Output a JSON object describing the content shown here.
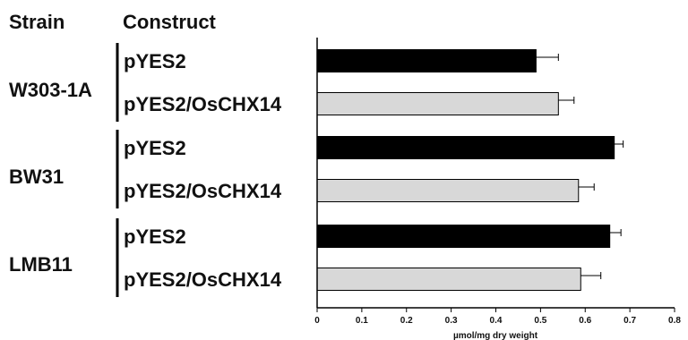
{
  "headers": {
    "strain": "Strain",
    "construct": "Construct"
  },
  "chart_data": {
    "type": "bar",
    "orientation": "horizontal",
    "groups": [
      {
        "strain": "W303-1A",
        "bars": [
          {
            "construct": "pYES2",
            "value": 0.49,
            "error": 0.05,
            "color": "#000000"
          },
          {
            "construct": "pYES2/OsCHX14",
            "value": 0.54,
            "error": 0.035,
            "color": "#d8d8d8"
          }
        ]
      },
      {
        "strain": "BW31",
        "bars": [
          {
            "construct": "pYES2",
            "value": 0.665,
            "error": 0.02,
            "color": "#000000"
          },
          {
            "construct": "pYES2/OsCHX14",
            "value": 0.585,
            "error": 0.035,
            "color": "#d8d8d8"
          }
        ]
      },
      {
        "strain": "LMB11",
        "bars": [
          {
            "construct": "pYES2",
            "value": 0.655,
            "error": 0.025,
            "color": "#000000"
          },
          {
            "construct": "pYES2/OsCHX14",
            "value": 0.59,
            "error": 0.045,
            "color": "#d8d8d8"
          }
        ]
      }
    ],
    "xlabel": "µmol/mg dry weight",
    "xlim": [
      0,
      0.8
    ],
    "xticks": [
      "0",
      "0.1",
      "0.2",
      "0.3",
      "0.4",
      "0.5",
      "0.6",
      "0.7",
      "0.8"
    ],
    "grid": false
  }
}
